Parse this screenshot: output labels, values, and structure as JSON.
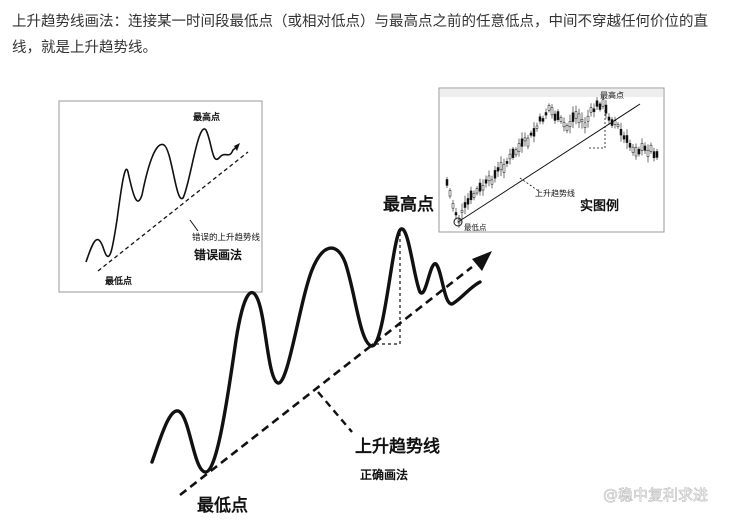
{
  "intro": {
    "text": "上升趋势线画法：连接某一时间段最低点（或相对低点）与最高点之前的任意低点，中间不穿越任何价位的直线，就是上升趋势线。"
  },
  "wrong_diagram": {
    "high_label": "最高点",
    "low_label": "最低点",
    "line_label": "错误的上升趋势线",
    "title": "错误画法"
  },
  "real_example": {
    "high_label": "最高点",
    "low_label": "最低点",
    "line_label": "上升趋势线",
    "title": "实图例"
  },
  "main_diagram": {
    "high_label": "最高点",
    "low_label": "最低点",
    "line_label": "上升趋势线",
    "subtitle": "正确画法"
  },
  "watermark": {
    "text": "@稳中复利求进"
  },
  "colors": {
    "text": "#333333",
    "candle_up": "#ffffff",
    "candle_down": "#111111",
    "watermark": "#ffffff"
  }
}
